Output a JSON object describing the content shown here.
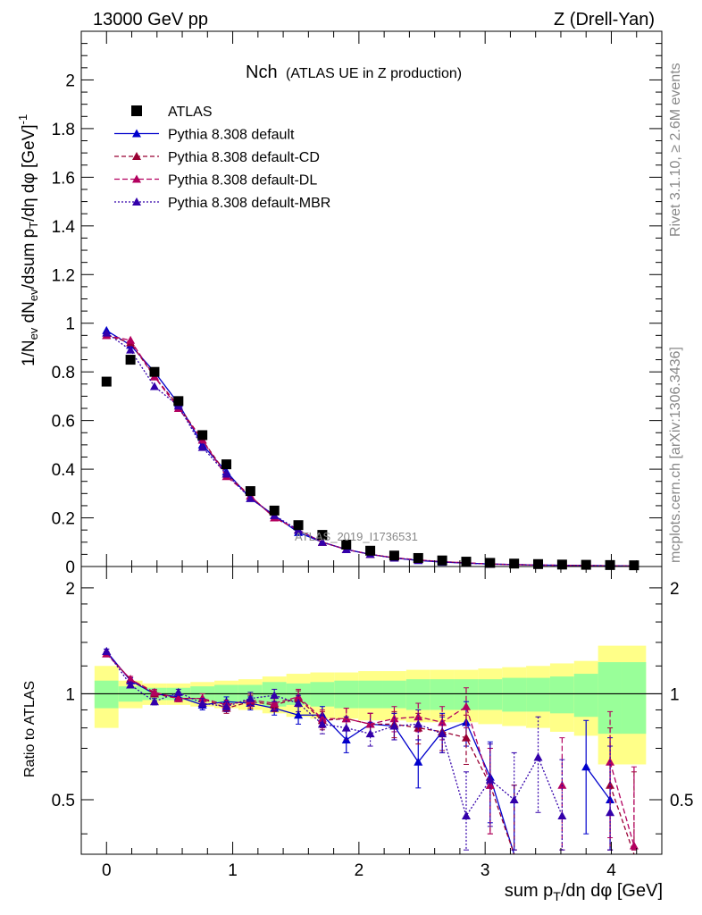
{
  "header": {
    "left": "13000 GeV pp",
    "right": "Z (Drell-Yan)"
  },
  "side_labels": {
    "rivet": "Rivet 3.1.10, ≥ 2.6M events",
    "mcplots": "mcplots.cern.ch [arXiv:1306.3436]"
  },
  "chart_data": {
    "type": "scatter",
    "title": "Nch",
    "subtitle": "(ATLAS UE in Z production)",
    "watermark": "ATLAS_2019_I1736531",
    "xlabel": "sum p_T/dη dφ [GeV]",
    "ylabel_main": "1/N_ev dN_ev/dsum p_T/dη dφ [GeV]^-1",
    "ylabel_ratio": "Ratio to ATLAS",
    "xlim": [
      -0.2,
      4.4
    ],
    "ylim_main": [
      0,
      2.2
    ],
    "ylim_ratio": [
      0.35,
      2.3
    ],
    "x_ticks": [
      "0",
      "1",
      "2",
      "3",
      "4"
    ],
    "y_ticks_main": [
      "0",
      "0.2",
      "0.4",
      "0.6",
      "0.8",
      "1",
      "1.2",
      "1.4",
      "1.6",
      "1.8",
      "2"
    ],
    "y_ticks_ratio": [
      "0.5",
      "1",
      "2"
    ],
    "x": [
      0.0,
      0.19,
      0.38,
      0.57,
      0.76,
      0.95,
      1.14,
      1.33,
      1.52,
      1.71,
      1.9,
      2.09,
      2.28,
      2.47,
      2.66,
      2.85,
      3.04,
      3.23,
      3.42,
      3.61,
      3.8,
      3.99,
      4.18
    ],
    "data": {
      "name": "ATLAS",
      "values": [
        0.76,
        0.85,
        0.8,
        0.68,
        0.54,
        0.42,
        0.31,
        0.23,
        0.17,
        0.13,
        0.09,
        0.065,
        0.045,
        0.035,
        0.025,
        0.02,
        0.015,
        0.012,
        0.01,
        0.008,
        0.007,
        0.006,
        0.005
      ]
    },
    "series": [
      {
        "name": "Pythia 8.308 default",
        "color": "#0000cc",
        "dash": "",
        "values": [
          0.97,
          0.91,
          0.8,
          0.67,
          0.5,
          0.39,
          0.28,
          0.21,
          0.14,
          0.1,
          0.07,
          0.05,
          0.035,
          0.025,
          0.018,
          0.014,
          0.01,
          0.008,
          0.006,
          0.005,
          0.004,
          0.003,
          0.002
        ],
        "ratio": [
          1.32,
          1.09,
          1.0,
          0.98,
          0.93,
          0.95,
          0.94,
          0.91,
          0.87,
          0.87,
          0.74,
          0.82,
          0.81,
          0.64,
          0.78,
          0.83,
          0.58,
          0.35,
          null,
          null,
          0.62,
          0.5,
          null
        ],
        "ratio_err": [
          0.02,
          0.02,
          0.02,
          0.02,
          0.03,
          0.03,
          0.04,
          0.04,
          0.05,
          0.05,
          0.06,
          0.06,
          0.07,
          0.1,
          0.1,
          0.12,
          0.15,
          0.2,
          0.2,
          0.2,
          0.22,
          0.25,
          0.25
        ]
      },
      {
        "name": "Pythia 8.308 default-CD",
        "color": "#990033",
        "dash": "5,3",
        "values": [
          0.95,
          0.92,
          0.78,
          0.66,
          0.52,
          0.38,
          0.29,
          0.2,
          0.15,
          0.1,
          0.07,
          0.05,
          0.036,
          0.027,
          0.02,
          0.015,
          0.01,
          0.008,
          0.006,
          0.005,
          0.004,
          0.003,
          0.002
        ],
        "ratio": [
          1.3,
          1.1,
          1.0,
          0.97,
          0.97,
          0.91,
          0.95,
          0.93,
          0.97,
          0.84,
          0.85,
          0.82,
          0.82,
          0.8,
          0.78,
          0.75,
          0.55,
          0.35,
          null,
          null,
          null,
          0.55,
          0.35
        ],
        "ratio_err": [
          0.02,
          0.02,
          0.02,
          0.02,
          0.03,
          0.03,
          0.04,
          0.04,
          0.05,
          0.05,
          0.06,
          0.06,
          0.07,
          0.08,
          0.09,
          0.12,
          0.15,
          0.2,
          0.2,
          0.2,
          0.2,
          0.25,
          0.25
        ]
      },
      {
        "name": "Pythia 8.308 default-DL",
        "color": "#b3005f",
        "dash": "6,3",
        "values": [
          0.95,
          0.93,
          0.78,
          0.65,
          0.52,
          0.37,
          0.29,
          0.2,
          0.15,
          0.1,
          0.07,
          0.05,
          0.036,
          0.027,
          0.02,
          0.015,
          0.01,
          0.008,
          0.006,
          0.005,
          0.004,
          0.003,
          0.002
        ],
        "ratio": [
          1.3,
          1.1,
          1.01,
          0.97,
          0.97,
          0.93,
          0.96,
          0.94,
          0.98,
          0.85,
          0.85,
          0.82,
          0.85,
          0.86,
          0.83,
          0.92,
          0.55,
          null,
          null,
          0.55,
          null,
          0.64,
          0.37
        ],
        "ratio_err": [
          0.02,
          0.02,
          0.02,
          0.02,
          0.03,
          0.03,
          0.04,
          0.04,
          0.05,
          0.05,
          0.06,
          0.06,
          0.07,
          0.08,
          0.09,
          0.12,
          0.15,
          0.2,
          0.2,
          0.2,
          0.2,
          0.25,
          0.25
        ]
      },
      {
        "name": "Pythia 8.308 default-MBR",
        "color": "#3300aa",
        "dash": "2,2",
        "values": [
          0.96,
          0.89,
          0.74,
          0.66,
          0.49,
          0.38,
          0.28,
          0.21,
          0.15,
          0.1,
          0.07,
          0.05,
          0.035,
          0.026,
          0.019,
          0.014,
          0.01,
          0.008,
          0.006,
          0.005,
          0.004,
          0.003,
          0.002
        ],
        "ratio": [
          1.32,
          1.06,
          0.95,
          1.01,
          0.94,
          0.92,
          0.97,
          0.99,
          0.94,
          0.82,
          0.8,
          0.77,
          0.81,
          0.82,
          0.77,
          0.45,
          0.57,
          0.5,
          0.66,
          0.45,
          null,
          0.46,
          null
        ],
        "ratio_err": [
          0.02,
          0.02,
          0.02,
          0.02,
          0.03,
          0.03,
          0.04,
          0.04,
          0.05,
          0.05,
          0.06,
          0.06,
          0.07,
          0.08,
          0.09,
          0.15,
          0.15,
          0.18,
          0.2,
          0.2,
          0.2,
          0.25,
          0.25
        ]
      }
    ],
    "bands": {
      "green_halfwidth": [
        0.09,
        0.05,
        0.04,
        0.04,
        0.05,
        0.06,
        0.06,
        0.08,
        0.07,
        0.08,
        0.09,
        0.09,
        0.09,
        0.1,
        0.1,
        0.1,
        0.1,
        0.11,
        0.11,
        0.12,
        0.14,
        0.23,
        0.23
      ],
      "yellow_halfwidth": [
        0.2,
        0.09,
        0.07,
        0.07,
        0.08,
        0.09,
        0.1,
        0.12,
        0.14,
        0.15,
        0.15,
        0.16,
        0.16,
        0.17,
        0.17,
        0.17,
        0.18,
        0.19,
        0.2,
        0.22,
        0.24,
        0.37,
        0.37
      ]
    },
    "legend_position": "top-left"
  }
}
